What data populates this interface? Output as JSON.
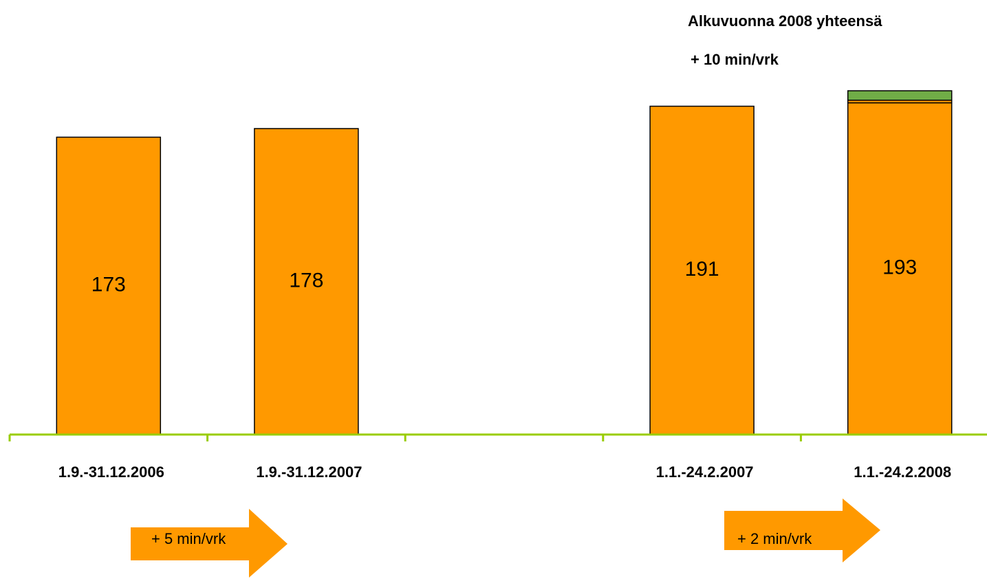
{
  "chart_data": {
    "type": "stacked_bar",
    "categories": [
      "1.9.-31.12.2006",
      "1.9.-31.12.2007",
      null,
      "1.1.-24.2.2007",
      "1.1.-24.2.2008"
    ],
    "series": [
      {
        "color": "#ff9900",
        "values": [
          173,
          178,
          null,
          191,
          193
        ]
      },
      {
        "color": "#ff9900",
        "values": [
          null,
          null,
          null,
          null,
          1.5
        ]
      },
      {
        "color": "#70ad47",
        "values": [
          null,
          null,
          null,
          null,
          5.5
        ]
      }
    ],
    "ylim": [
      0,
      250
    ],
    "axis_color": "#99cc00",
    "annotations": [
      "Alkuvuonna 2008 yhteensä",
      "+ 10 min/vrk"
    ],
    "arrows": [
      {
        "label": "+ 5 min/vrk",
        "color": "#ff9900"
      },
      {
        "label": "+ 2 min/vrk",
        "color": "#ff9900"
      }
    ]
  }
}
